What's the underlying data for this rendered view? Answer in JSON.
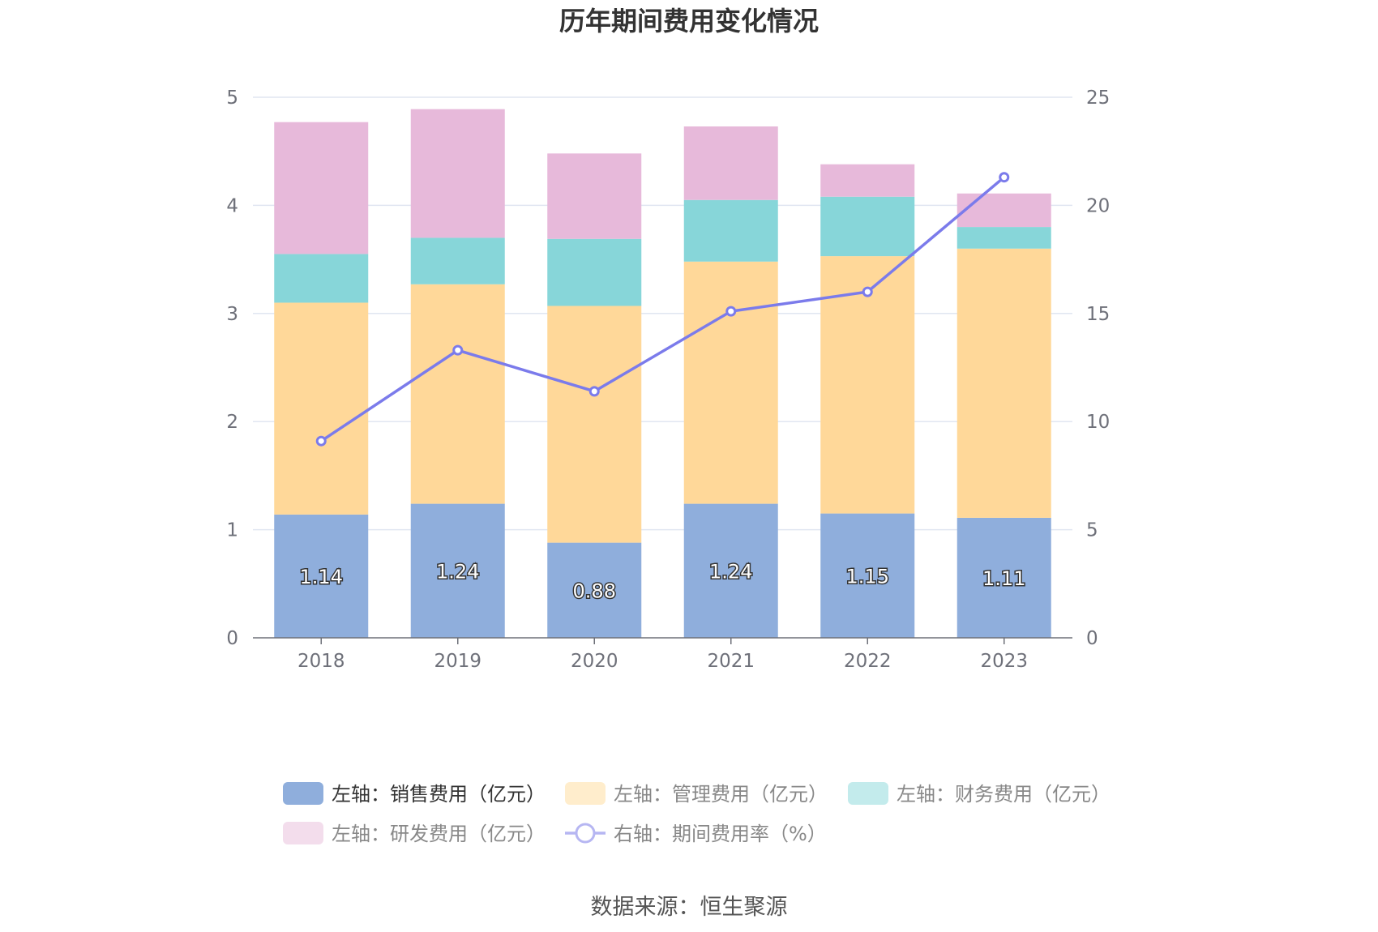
{
  "chart_data": {
    "type": "bar",
    "title": "历年期间费用变化情况",
    "categories": [
      "2018",
      "2019",
      "2020",
      "2021",
      "2022",
      "2023"
    ],
    "left_axis": {
      "min": 0,
      "max": 5,
      "ticks": [
        "0",
        "1",
        "2",
        "3",
        "4",
        "5"
      ]
    },
    "right_axis": {
      "min": 0,
      "max": 25,
      "ticks": [
        "0",
        "5",
        "10",
        "15",
        "20",
        "25"
      ]
    },
    "series": [
      {
        "name": "左轴：销售费用（亿元）",
        "axis": "left",
        "color": "#8FAEDC",
        "values": [
          1.14,
          1.24,
          0.88,
          1.24,
          1.15,
          1.11
        ],
        "labels": [
          "1.14",
          "1.24",
          "0.88",
          "1.24",
          "1.15",
          "1.11"
        ]
      },
      {
        "name": "左轴：管理费用（亿元）",
        "axis": "left",
        "color": "#FFD899",
        "legend_color": "#FFEDCC",
        "values": [
          1.96,
          2.03,
          2.19,
          2.24,
          2.38,
          2.49
        ]
      },
      {
        "name": "左轴：财务费用（亿元）",
        "axis": "left",
        "color": "#87D6D9",
        "legend_color": "#C3EBEC",
        "values": [
          0.45,
          0.43,
          0.62,
          0.57,
          0.55,
          0.2
        ]
      },
      {
        "name": "左轴：研发费用（亿元）",
        "axis": "left",
        "color": "#E7B9DA",
        "legend_color": "#F3DDEC",
        "values": [
          1.22,
          1.19,
          0.79,
          0.68,
          0.3,
          0.31
        ]
      },
      {
        "name": "右轴：期间费用率（%）",
        "axis": "right",
        "type": "line",
        "color": "#7B7BEB",
        "values": [
          9.1,
          13.3,
          11.4,
          15.1,
          16.0,
          21.3
        ]
      }
    ]
  },
  "source": "数据来源：恒生聚源"
}
